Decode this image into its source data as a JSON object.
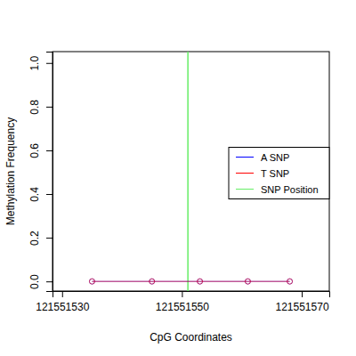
{
  "chart_data": {
    "type": "line",
    "x_label": "CpG Coordinates",
    "y_label": "Methylation Frequency",
    "x": [
      121551535,
      121551545,
      121551553,
      121551561,
      121551568
    ],
    "series": [
      {
        "name": "A SNP",
        "color": "#0000ff",
        "values": [
          0,
          0,
          0,
          0,
          0
        ],
        "marker": "circle"
      },
      {
        "name": "T SNP",
        "color": "#ff0000",
        "values": [
          0,
          0,
          0,
          0,
          0
        ],
        "marker": "circle"
      }
    ],
    "snp_position": {
      "name": "SNP Position",
      "color": "#66ee66",
      "x": 121551551
    },
    "xlim": [
      121551528.4,
      121551574.6
    ],
    "xticks": [
      121551530,
      121551550,
      121551570
    ],
    "ylim": [
      -0.044,
      1.052
    ],
    "yticks": [
      {
        "value": 0,
        "label": "0.0"
      },
      0.2,
      0.4,
      0.6,
      0.8,
      {
        "value": 1,
        "label": "1.0"
      }
    ],
    "legend": "right",
    "grid": false
  }
}
